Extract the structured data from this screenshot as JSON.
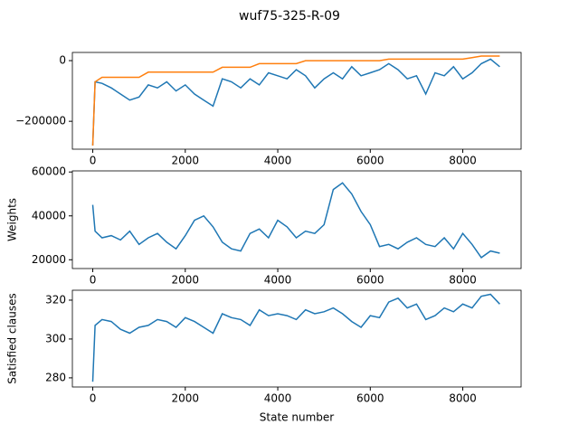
{
  "title": "wuf75-325-R-09",
  "chart_data": [
    {
      "type": "line",
      "x": [
        0,
        50,
        200,
        400,
        600,
        800,
        1000,
        1200,
        1400,
        1600,
        1800,
        2000,
        2200,
        2400,
        2600,
        2800,
        3000,
        3200,
        3400,
        3600,
        3800,
        4000,
        4200,
        4400,
        4600,
        4800,
        5000,
        5200,
        5400,
        5600,
        5800,
        6000,
        6200,
        6400,
        6600,
        6800,
        7000,
        7200,
        7400,
        7600,
        7800,
        8000,
        8200,
        8400,
        8600,
        8800
      ],
      "series": [
        {
          "color": "#1f77b4",
          "values": [
            -280000,
            -70000,
            -75000,
            -90000,
            -110000,
            -130000,
            -120000,
            -80000,
            -90000,
            -70000,
            -100000,
            -80000,
            -110000,
            -130000,
            -150000,
            -60000,
            -70000,
            -90000,
            -60000,
            -80000,
            -40000,
            -50000,
            -60000,
            -30000,
            -50000,
            -90000,
            -60000,
            -40000,
            -60000,
            -20000,
            -50000,
            -40000,
            -30000,
            -10000,
            -30000,
            -60000,
            -50000,
            -110000,
            -40000,
            -50000,
            -20000,
            -60000,
            -40000,
            -10000,
            5000,
            -20000
          ]
        },
        {
          "color": "#ff7f0e",
          "values": [
            -280000,
            -70000,
            -55000,
            -55000,
            -55000,
            -55000,
            -55000,
            -38000,
            -38000,
            -38000,
            -38000,
            -38000,
            -38000,
            -38000,
            -38000,
            -22000,
            -22000,
            -22000,
            -22000,
            -10000,
            -10000,
            -10000,
            -10000,
            -10000,
            0,
            0,
            0,
            0,
            0,
            0,
            0,
            0,
            0,
            5000,
            5000,
            5000,
            5000,
            5000,
            5000,
            5000,
            5000,
            5000,
            10000,
            15000,
            15000,
            15000
          ]
        }
      ],
      "xlim": [
        -441,
        9261
      ],
      "xticks": [
        0,
        2000,
        4000,
        6000,
        8000
      ],
      "ylim": [
        -292000,
        27000
      ],
      "yticks": [
        {
          "value": -200000,
          "label": "−200000"
        },
        0
      ]
    },
    {
      "type": "line",
      "ylabel": "Weights",
      "x": [
        0,
        50,
        200,
        400,
        600,
        800,
        1000,
        1200,
        1400,
        1600,
        1800,
        2000,
        2200,
        2400,
        2600,
        2800,
        3000,
        3200,
        3400,
        3600,
        3800,
        4000,
        4200,
        4400,
        4600,
        4800,
        5000,
        5200,
        5400,
        5600,
        5800,
        6000,
        6200,
        6400,
        6600,
        6800,
        7000,
        7200,
        7400,
        7600,
        7800,
        8000,
        8200,
        8400,
        8600,
        8800
      ],
      "series": [
        {
          "color": "#1f77b4",
          "values": [
            45000,
            33000,
            30000,
            31000,
            29000,
            33000,
            27000,
            30000,
            32000,
            28000,
            25000,
            31000,
            38000,
            40000,
            35000,
            28000,
            25000,
            24000,
            32000,
            34000,
            30000,
            38000,
            35000,
            30000,
            33000,
            32000,
            36000,
            52000,
            55000,
            50000,
            42000,
            36000,
            26000,
            27000,
            25000,
            28000,
            30000,
            27000,
            26000,
            30000,
            25000,
            32000,
            27000,
            21000,
            24000,
            23000
          ]
        }
      ],
      "xlim": [
        -441,
        9261
      ],
      "xticks": [
        0,
        2000,
        4000,
        6000,
        8000
      ],
      "ylim": [
        16000,
        60500
      ],
      "yticks": [
        20000,
        40000,
        60000
      ]
    },
    {
      "type": "line",
      "ylabel": "Satisfied clauses",
      "xlabel": "State number",
      "x": [
        0,
        50,
        200,
        400,
        600,
        800,
        1000,
        1200,
        1400,
        1600,
        1800,
        2000,
        2200,
        2400,
        2600,
        2800,
        3000,
        3200,
        3400,
        3600,
        3800,
        4000,
        4200,
        4400,
        4600,
        4800,
        5000,
        5200,
        5400,
        5600,
        5800,
        6000,
        6200,
        6400,
        6600,
        6800,
        7000,
        7200,
        7400,
        7600,
        7800,
        8000,
        8200,
        8400,
        8600,
        8800
      ],
      "series": [
        {
          "color": "#1f77b4",
          "values": [
            278,
            307,
            310,
            309,
            305,
            303,
            306,
            307,
            310,
            309,
            306,
            311,
            309,
            306,
            303,
            313,
            311,
            310,
            307,
            315,
            312,
            313,
            312,
            310,
            315,
            313,
            314,
            316,
            313,
            309,
            306,
            312,
            311,
            319,
            321,
            316,
            318,
            310,
            312,
            316,
            314,
            318,
            316,
            322,
            323,
            318
          ]
        }
      ],
      "xlim": [
        -441,
        9261
      ],
      "xticks": [
        0,
        2000,
        4000,
        6000,
        8000
      ],
      "ylim": [
        275.3,
        325.1
      ],
      "yticks": [
        280,
        300,
        320
      ]
    }
  ]
}
